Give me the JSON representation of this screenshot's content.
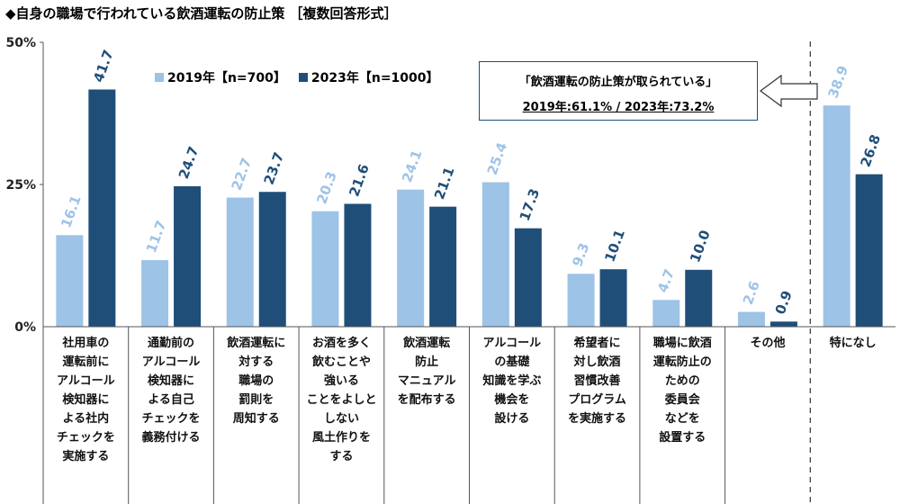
{
  "title": "◆自身の職場で行われている飲酒運転の防止策 ［複数回答形式］",
  "callout": {
    "line1": "「飲酒運転の防止策が取られている」",
    "line2": "2019年:61.1% / 2023年:73.2%"
  },
  "colors": {
    "s2019": "#9dc3e6",
    "s2023": "#1f4e79"
  },
  "chart_data": {
    "type": "bar",
    "ylim": [
      0,
      50
    ],
    "yticks": [
      "0%",
      "25%",
      "50%"
    ],
    "categories": [
      [
        "社用車の",
        "運転前に",
        "アルコール",
        "検知器に",
        "よる社内",
        "チェックを",
        "実施する"
      ],
      [
        "通勤前の",
        "アルコール",
        "検知器に",
        "よる自己",
        "チェックを",
        "義務付ける"
      ],
      [
        "飲酒運転に",
        "対する",
        "職場の",
        "罰則を",
        "周知する"
      ],
      [
        "お酒を多く",
        "飲むことや",
        "強いる",
        "ことをよしと",
        "しない",
        "風土作りを",
        "する"
      ],
      [
        "飲酒運転",
        "防止",
        "マニュアル",
        "を配布する"
      ],
      [
        "アルコール",
        "の基礎",
        "知識を学ぶ",
        "機会を",
        "設ける"
      ],
      [
        "希望者に",
        "対し飲酒",
        "習慣改善",
        "プログラム",
        "を実施する"
      ],
      [
        "職場に飲酒",
        "運転防止の",
        "ための",
        "委員会",
        "などを",
        "設置する"
      ],
      [
        "その他"
      ],
      [
        "特になし"
      ]
    ],
    "series": [
      {
        "name": "2019年【n=700】",
        "values": [
          16.1,
          11.7,
          22.7,
          20.3,
          24.1,
          25.4,
          9.3,
          4.7,
          2.6,
          38.9
        ]
      },
      {
        "name": "2023年【n=1000】",
        "values": [
          41.7,
          24.7,
          23.7,
          21.6,
          21.1,
          17.3,
          10.1,
          10.0,
          0.9,
          26.8
        ]
      }
    ]
  }
}
